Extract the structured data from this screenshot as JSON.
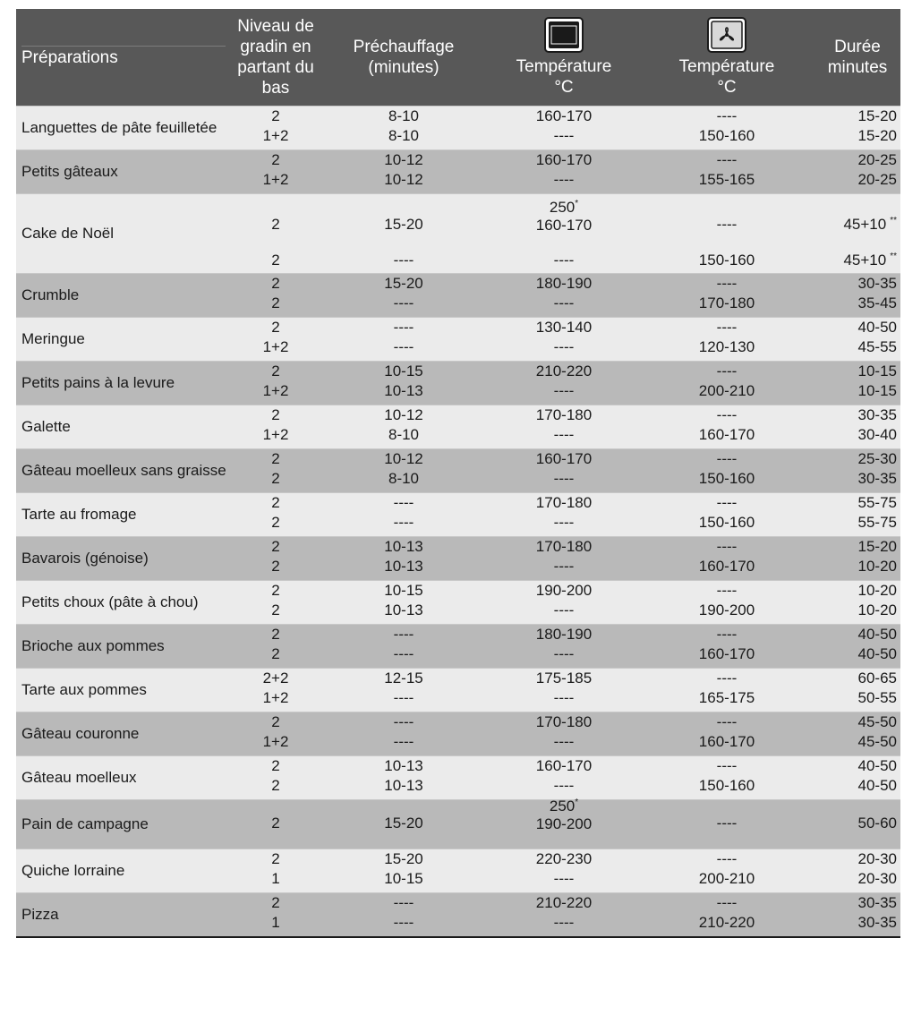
{
  "header": {
    "preparations": "Préparations",
    "niveau": "Niveau de gradin en partant du bas",
    "prechauffage": "Préchauffage (minutes)",
    "temp_conventional_label": "Température",
    "temp_conventional_unit": "°C",
    "temp_conventional_icon": "conventional-oven-icon",
    "temp_fan_label": "Température",
    "temp_fan_unit": "°C",
    "temp_fan_icon": "fan-oven-icon",
    "duree": "Durée minutes"
  },
  "colors": {
    "header_bg": "#585858",
    "row_light": "#ebebeb",
    "row_dark": "#b9b9b9"
  },
  "groups": [
    {
      "name": "Languettes de pâte feuilletée",
      "shade": "light",
      "rows": [
        {
          "niveau": "2",
          "pre": "8-10",
          "t1": "160-170",
          "t2": "----",
          "dur": "15-20"
        },
        {
          "niveau": "1+2",
          "pre": "8-10",
          "t1": "----",
          "t2": "150-160",
          "dur": "15-20"
        }
      ]
    },
    {
      "name": "Petits gâteaux",
      "shade": "dark",
      "rows": [
        {
          "niveau": "2",
          "pre": "10-12",
          "t1": "160-170",
          "t2": "----",
          "dur": "20-25"
        },
        {
          "niveau": "1+2",
          "pre": "10-12",
          "t1": "----",
          "t2": "155-165",
          "dur": "20-25"
        }
      ]
    },
    {
      "name": "Cake de Noël",
      "shade": "light",
      "special": "cake",
      "rows": [
        {
          "niveau": "2",
          "pre": "15-20",
          "t1_top": "250",
          "t1_top_mark": "*",
          "t1": "160-170",
          "t2": "----",
          "dur": "45+10",
          "dur_mark": "**"
        },
        {
          "niveau": "2",
          "pre": "----",
          "t1": "----",
          "t2": "150-160",
          "dur": "45+10",
          "dur_mark": "**"
        }
      ]
    },
    {
      "name": "Crumble",
      "shade": "dark",
      "rows": [
        {
          "niveau": "2",
          "pre": "15-20",
          "t1": "180-190",
          "t2": "----",
          "dur": "30-35"
        },
        {
          "niveau": "2",
          "pre": "----",
          "t1": "----",
          "t2": "170-180",
          "dur": "35-45"
        }
      ]
    },
    {
      "name": "Meringue",
      "shade": "light",
      "rows": [
        {
          "niveau": "2",
          "pre": "----",
          "t1": "130-140",
          "t2": "----",
          "dur": "40-50"
        },
        {
          "niveau": "1+2",
          "pre": "----",
          "t1": "----",
          "t2": "120-130",
          "dur": "45-55"
        }
      ]
    },
    {
      "name": "Petits pains à la levure",
      "shade": "dark",
      "rows": [
        {
          "niveau": "2",
          "pre": "10-15",
          "t1": "210-220",
          "t2": "----",
          "dur": "10-15"
        },
        {
          "niveau": "1+2",
          "pre": "10-13",
          "t1": "----",
          "t2": "200-210",
          "dur": "10-15"
        }
      ]
    },
    {
      "name": "Galette",
      "shade": "light",
      "rows": [
        {
          "niveau": "2",
          "pre": "10-12",
          "t1": "170-180",
          "t2": "----",
          "dur": "30-35"
        },
        {
          "niveau": "1+2",
          "pre": "8-10",
          "t1": "----",
          "t2": "160-170",
          "dur": "30-40"
        }
      ]
    },
    {
      "name": "Gâteau moelleux sans graisse",
      "shade": "dark",
      "rows": [
        {
          "niveau": "2",
          "pre": "10-12",
          "t1": "160-170",
          "t2": "----",
          "dur": "25-30"
        },
        {
          "niveau": "2",
          "pre": "8-10",
          "t1": "----",
          "t2": "150-160",
          "dur": "30-35"
        }
      ]
    },
    {
      "name": "Tarte au fromage",
      "shade": "light",
      "rows": [
        {
          "niveau": "2",
          "pre": "----",
          "t1": "170-180",
          "t2": "----",
          "dur": "55-75"
        },
        {
          "niveau": "2",
          "pre": "----",
          "t1": "----",
          "t2": "150-160",
          "dur": "55-75"
        }
      ]
    },
    {
      "name": "Bavarois (génoise)",
      "shade": "dark",
      "rows": [
        {
          "niveau": "2",
          "pre": "10-13",
          "t1": "170-180",
          "t2": "----",
          "dur": "15-20"
        },
        {
          "niveau": "2",
          "pre": "10-13",
          "t1": "----",
          "t2": "160-170",
          "dur": "10-20"
        }
      ]
    },
    {
      "name": "Petits choux (pâte à chou)",
      "shade": "light",
      "rows": [
        {
          "niveau": "2",
          "pre": "10-15",
          "t1": "190-200",
          "t2": "----",
          "dur": "10-20"
        },
        {
          "niveau": "2",
          "pre": "10-13",
          "t1": "----",
          "t2": "190-200",
          "dur": "10-20"
        }
      ]
    },
    {
      "name": "Brioche aux pommes",
      "shade": "dark",
      "rows": [
        {
          "niveau": "2",
          "pre": "----",
          "t1": "180-190",
          "t2": "----",
          "dur": "40-50"
        },
        {
          "niveau": "2",
          "pre": "----",
          "t1": "----",
          "t2": "160-170",
          "dur": "40-50"
        }
      ]
    },
    {
      "name": "Tarte aux pommes",
      "shade": "light",
      "rows": [
        {
          "niveau": "2+2",
          "pre": "12-15",
          "t1": "175-185",
          "t2": "----",
          "dur": "60-65"
        },
        {
          "niveau": "1+2",
          "pre": "----",
          "t1": "----",
          "t2": "165-175",
          "dur": "50-55"
        }
      ]
    },
    {
      "name": "Gâteau couronne",
      "shade": "dark",
      "rows": [
        {
          "niveau": "2",
          "pre": "----",
          "t1": "170-180",
          "t2": "----",
          "dur": "45-50"
        },
        {
          "niveau": "1+2",
          "pre": "----",
          "t1": "----",
          "t2": "160-170",
          "dur": "45-50"
        }
      ]
    },
    {
      "name": "Gâteau moelleux",
      "shade": "light",
      "rows": [
        {
          "niveau": "2",
          "pre": "10-13",
          "t1": "160-170",
          "t2": "----",
          "dur": "40-50"
        },
        {
          "niveau": "2",
          "pre": "10-13",
          "t1": "----",
          "t2": "150-160",
          "dur": "40-50"
        }
      ]
    },
    {
      "name": "Pain de campagne",
      "shade": "dark",
      "special": "pain",
      "rows": [
        {
          "niveau": "2",
          "pre": "15-20",
          "t1_top": "250",
          "t1_top_mark": "*",
          "t1": "190-200",
          "t2": "----",
          "dur": "50-60"
        }
      ]
    },
    {
      "name": "Quiche lorraine",
      "shade": "light",
      "rows": [
        {
          "niveau": "2",
          "pre": "15-20",
          "t1": "220-230",
          "t2": "----",
          "dur": "20-30"
        },
        {
          "niveau": "1",
          "pre": "10-15",
          "t1": "----",
          "t2": "200-210",
          "dur": "20-30"
        }
      ]
    },
    {
      "name": "Pizza",
      "shade": "dark",
      "rows": [
        {
          "niveau": "2",
          "pre": "----",
          "t1": "210-220",
          "t2": "----",
          "dur": "30-35"
        },
        {
          "niveau": "1",
          "pre": "----",
          "t1": "----",
          "t2": "210-220",
          "dur": "30-35"
        }
      ]
    }
  ]
}
